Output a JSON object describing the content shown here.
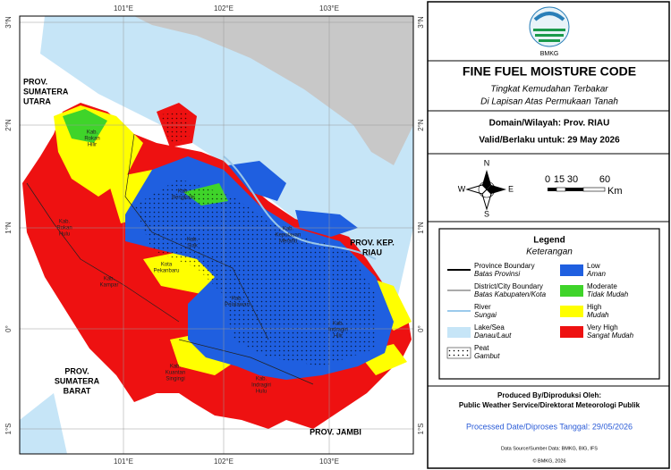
{
  "map": {
    "lon_labels_top": [
      "101°E",
      "102°E",
      "103°E"
    ],
    "lon_labels_bottom": [
      "101°E",
      "102°E",
      "103°E"
    ],
    "lat_labels_left": [
      "3°N",
      "2°N",
      "1°N",
      "0°",
      "1°S"
    ],
    "lat_labels_right": [
      "3°N",
      "2°N",
      "1°N",
      "0°",
      "1°S"
    ],
    "province_labels": [
      {
        "lines": [
          "PROV.",
          "SUMATERA",
          "UTARA"
        ]
      },
      {
        "lines": [
          "PROV.",
          "SUMATERA",
          "BARAT"
        ]
      },
      {
        "lines": [
          "PROV. KEP.",
          "RIAU"
        ]
      },
      {
        "lines": [
          "PROV. JAMBI"
        ]
      }
    ],
    "district_labels": [
      {
        "lines": [
          "Kab.",
          "Rokan",
          "Hilir"
        ]
      },
      {
        "lines": [
          "Kab.",
          "Bengkalis"
        ]
      },
      {
        "lines": [
          "Kab.",
          "Rokan",
          "Hulu"
        ]
      },
      {
        "lines": [
          "Kab.",
          "Siak"
        ]
      },
      {
        "lines": [
          "Kota",
          "Pekanbaru"
        ]
      },
      {
        "lines": [
          "Kab.",
          "Kampar"
        ]
      },
      {
        "lines": [
          "Kab.",
          "Pelalawan"
        ]
      },
      {
        "lines": [
          "Kab.",
          "Indragiri",
          "Hilir"
        ]
      },
      {
        "lines": [
          "Kab.",
          "Kuantan",
          "Singingi"
        ]
      },
      {
        "lines": [
          "Kab.",
          "Indragiri",
          "Hulu"
        ]
      },
      {
        "lines": [
          "Kab.",
          "Kepulauan",
          "Meranti"
        ]
      }
    ]
  },
  "panel": {
    "logo_text": "BMKG",
    "title": "FINE FUEL MOISTURE CODE",
    "subtitle": [
      "Tingkat Kemudahan Terbakar",
      "Di Lapisan Atas Permukaan Tanah"
    ],
    "domain": "Domain/Wilayah: Prov. RIAU",
    "valid": "Valid/Berlaku untuk: 29 May 2026",
    "compass": [
      "N",
      "E",
      "S",
      "W"
    ],
    "scale_labels": [
      "0",
      "15",
      "30",
      "60"
    ],
    "scale_unit": "Km",
    "legend_title": "Legend",
    "legend_subtitle": "Keterangan",
    "legend_lines": [
      {
        "label": "Province Boundary",
        "translation": "Batas Provinsi"
      },
      {
        "label": "District/City Boundary",
        "translation": "Batas Kabupaten/Kota"
      },
      {
        "label": "River",
        "translation": "Sungai"
      },
      {
        "label": "Lake/Sea",
        "translation": "Danau/Laut"
      },
      {
        "label": "Peat",
        "translation": "Gambut"
      }
    ],
    "legend_classes": [
      {
        "label": "Low",
        "translation": "Aman",
        "color": "#1f5fe0"
      },
      {
        "label": "Moderate",
        "translation": "Tidak Mudah",
        "color": "#3fd42a"
      },
      {
        "label": "High",
        "translation": "Mudah",
        "color": "#ffff00"
      },
      {
        "label": "Very High",
        "translation": "Sangat Mudah",
        "color": "#ee1111"
      }
    ],
    "produced_by": "Produced By/Diproduksi Oleh:",
    "producer": "Public Weather Service/Direktorat Meteorologi Publik",
    "processed": "Processed Date/Diproses Tanggal: 29/05/2026",
    "data_source": "Data Source/Sumber Data: BMKG, BIG, IFS",
    "copyright": "© BMKG, 2026"
  }
}
